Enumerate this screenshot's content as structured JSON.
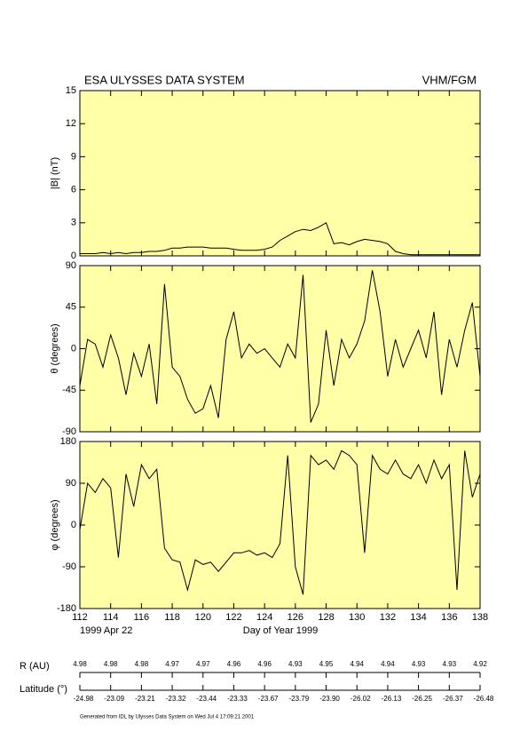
{
  "header": {
    "title": "ESA ULYSSES DATA SYSTEM",
    "instrument": "VHM/FGM"
  },
  "chart_data": [
    {
      "type": "line",
      "ylabel": "|B| (nT)",
      "xlim": [
        112,
        138
      ],
      "xticks": [
        112,
        114,
        116,
        118,
        120,
        122,
        124,
        126,
        128,
        130,
        132,
        134,
        136,
        138
      ],
      "ylim": [
        0,
        15
      ],
      "yticks": [
        0,
        3,
        6,
        9,
        12,
        15
      ],
      "color": "#000000",
      "background": "#ffffa8",
      "x": [
        112,
        112.5,
        113,
        113.5,
        114,
        114.5,
        115,
        115.5,
        116,
        116.5,
        117,
        117.5,
        118,
        118.5,
        119,
        119.5,
        120,
        120.5,
        121,
        121.5,
        122,
        122.5,
        123,
        123.5,
        124,
        124.5,
        125,
        125.5,
        126,
        126.5,
        127,
        127.5,
        128,
        128.5,
        129,
        129.5,
        130,
        130.5,
        131,
        131.5,
        132,
        132.5,
        133,
        133.5,
        134,
        134.5,
        135,
        135.5,
        136,
        136.5,
        137,
        137.5,
        138
      ],
      "values": [
        0.2,
        0.2,
        0.2,
        0.3,
        0.2,
        0.3,
        0.2,
        0.3,
        0.3,
        0.4,
        0.4,
        0.5,
        0.7,
        0.7,
        0.8,
        0.8,
        0.8,
        0.7,
        0.7,
        0.7,
        0.6,
        0.5,
        0.5,
        0.5,
        0.6,
        0.8,
        1.4,
        1.8,
        2.2,
        2.4,
        2.3,
        2.6,
        3.0,
        1.1,
        1.2,
        1.0,
        1.3,
        1.5,
        1.4,
        1.3,
        1.1,
        0.4,
        0.2,
        0.1,
        0.1,
        0.1,
        0.1,
        0.1,
        0.1,
        0.1,
        0.1,
        0.1,
        0.1
      ]
    },
    {
      "type": "line",
      "ylabel": "θ (degrees)",
      "xlim": [
        112,
        138
      ],
      "xticks": [
        112,
        114,
        116,
        118,
        120,
        122,
        124,
        126,
        128,
        130,
        132,
        134,
        136,
        138
      ],
      "ylim": [
        -90,
        90
      ],
      "yticks": [
        -90,
        -45,
        0,
        45,
        90
      ],
      "color": "#000000",
      "background": "#ffffa8",
      "x": [
        112,
        112.5,
        113,
        113.5,
        114,
        114.5,
        115,
        115.5,
        116,
        116.5,
        117,
        117.5,
        118,
        118.5,
        119,
        119.5,
        120,
        120.5,
        121,
        121.5,
        122,
        122.5,
        123,
        123.5,
        124,
        124.5,
        125,
        125.5,
        126,
        126.5,
        127,
        127.5,
        128,
        128.5,
        129,
        129.5,
        130,
        130.5,
        131,
        131.5,
        132,
        132.5,
        133,
        133.5,
        134,
        134.5,
        135,
        135.5,
        136,
        136.5,
        137,
        137.5,
        138
      ],
      "values": [
        -40,
        10,
        5,
        -20,
        15,
        -10,
        -50,
        -5,
        -30,
        5,
        -60,
        70,
        -20,
        -30,
        -55,
        -70,
        -65,
        -40,
        -75,
        10,
        40,
        -10,
        5,
        -5,
        0,
        -10,
        -20,
        5,
        -10,
        80,
        -80,
        -60,
        20,
        -40,
        10,
        -10,
        5,
        30,
        85,
        40,
        -30,
        10,
        -20,
        0,
        20,
        -10,
        40,
        -50,
        10,
        -20,
        20,
        50,
        -30
      ]
    },
    {
      "type": "line",
      "ylabel": "φ (degrees)",
      "xlabel": "Day of Year 1999",
      "annotation": "1999 Apr 22",
      "xlim": [
        112,
        138
      ],
      "xticks": [
        112,
        114,
        116,
        118,
        120,
        122,
        124,
        126,
        128,
        130,
        132,
        134,
        136,
        138
      ],
      "ylim": [
        -180,
        180
      ],
      "yticks": [
        -180,
        -90,
        0,
        90,
        180
      ],
      "color": "#000000",
      "background": "#ffffa8",
      "x": [
        112,
        112.5,
        113,
        113.5,
        114,
        114.5,
        115,
        115.5,
        116,
        116.5,
        117,
        117.5,
        118,
        118.5,
        119,
        119.5,
        120,
        120.5,
        121,
        121.5,
        122,
        122.5,
        123,
        123.5,
        124,
        124.5,
        125,
        125.5,
        126,
        126.5,
        127,
        127.5,
        128,
        128.5,
        129,
        129.5,
        130,
        130.5,
        131,
        131.5,
        132,
        132.5,
        133,
        133.5,
        134,
        134.5,
        135,
        135.5,
        136,
        136.5,
        137,
        137.5,
        138
      ],
      "values": [
        -10,
        90,
        70,
        100,
        80,
        -70,
        110,
        40,
        130,
        100,
        120,
        -50,
        -75,
        -80,
        -140,
        -75,
        -85,
        -80,
        -100,
        -80,
        -60,
        -60,
        -55,
        -65,
        -60,
        -70,
        -40,
        150,
        -90,
        -150,
        150,
        130,
        140,
        120,
        160,
        150,
        130,
        -60,
        150,
        120,
        110,
        140,
        110,
        100,
        130,
        90,
        140,
        100,
        130,
        -140,
        160,
        60,
        110
      ]
    }
  ],
  "ephemeris": {
    "r_label": "R (AU)",
    "r_values": [
      "4.98",
      "4.98",
      "4.98",
      "4.97",
      "4.97",
      "4.96",
      "4.96",
      "4.93",
      "4.95",
      "4.94",
      "4.94",
      "4.93",
      "4.93",
      "4.92"
    ],
    "lat_label": "Latitude (°)",
    "lat_values": [
      "-24.98",
      "-23.09",
      "-23.21",
      "-23.32",
      "-23.44",
      "-23.33",
      "-23.67",
      "-23.79",
      "-23.90",
      "-26.02",
      "-26.13",
      "-26.25",
      "-26.37",
      "-26.48"
    ]
  },
  "footer": "Generated from IDL by Ulysses Data System on Wed Jul 4 17:09:21 2001"
}
